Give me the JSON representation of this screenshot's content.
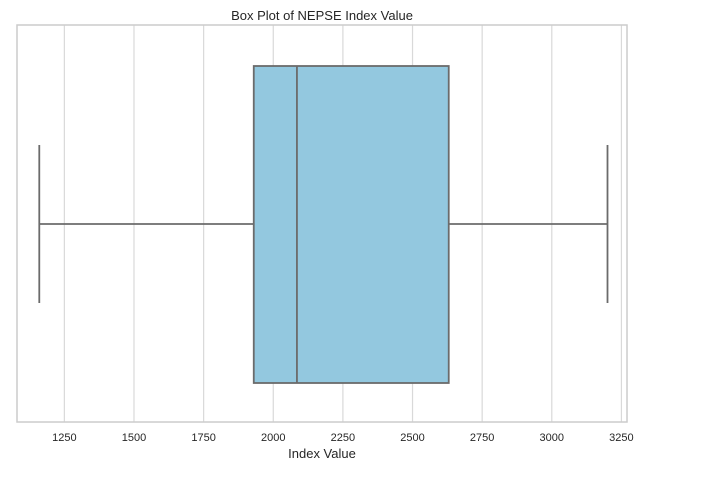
{
  "chart_data": {
    "type": "box",
    "title": "Box Plot of NEPSE Index Value",
    "xlabel": "Index Value",
    "ylabel": "",
    "orientation": "horizontal",
    "xlim": [
      1080,
      3270
    ],
    "xticks": [
      1250,
      1500,
      1750,
      2000,
      2250,
      2500,
      2750,
      3000,
      3250
    ],
    "grid": true,
    "box": {
      "whisker_low": 1160,
      "q1": 1930,
      "median": 2085,
      "q3": 2630,
      "whisker_high": 3200
    },
    "colors": {
      "box_fill": "#93c8df",
      "line": "#6b6b6b",
      "grid": "#d9d9d9",
      "frame": "#cccccc"
    }
  }
}
